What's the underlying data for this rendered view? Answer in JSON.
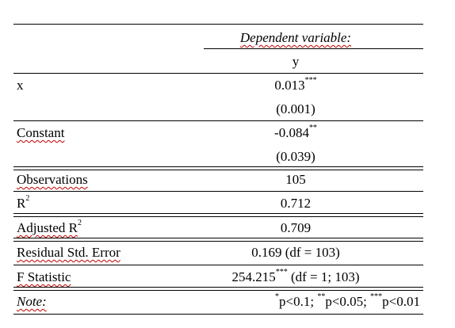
{
  "header": {
    "dependent_variable": "Dependent variable:",
    "y": "y"
  },
  "rows": {
    "x": {
      "label": "x",
      "coef": "0.013",
      "coef_stars": "***",
      "se": "(0.001)"
    },
    "constant": {
      "label": "Constant",
      "coef": "-0.084",
      "coef_stars": "**",
      "se": "(0.039)"
    }
  },
  "stats": {
    "observations": {
      "label": "Observations",
      "value": "105"
    },
    "r2": {
      "label": "R",
      "label_sup": "2",
      "value": "0.712"
    },
    "adj_r2": {
      "label": "Adjusted R",
      "label_sup": "2",
      "value": "0.709"
    },
    "rse": {
      "label": "Residual Std. Error",
      "value": "0.169 (df = 103)"
    },
    "fstat": {
      "label": "F Statistic",
      "value": "254.215",
      "value_stars": "***",
      "value_rest": " (df = 1; 103)"
    }
  },
  "note": {
    "label": "Note:",
    "s1": "*",
    "t1": "p<0.1; ",
    "s2": "**",
    "t2": "p<0.05; ",
    "s3": "***",
    "t3": "p<0.01"
  }
}
